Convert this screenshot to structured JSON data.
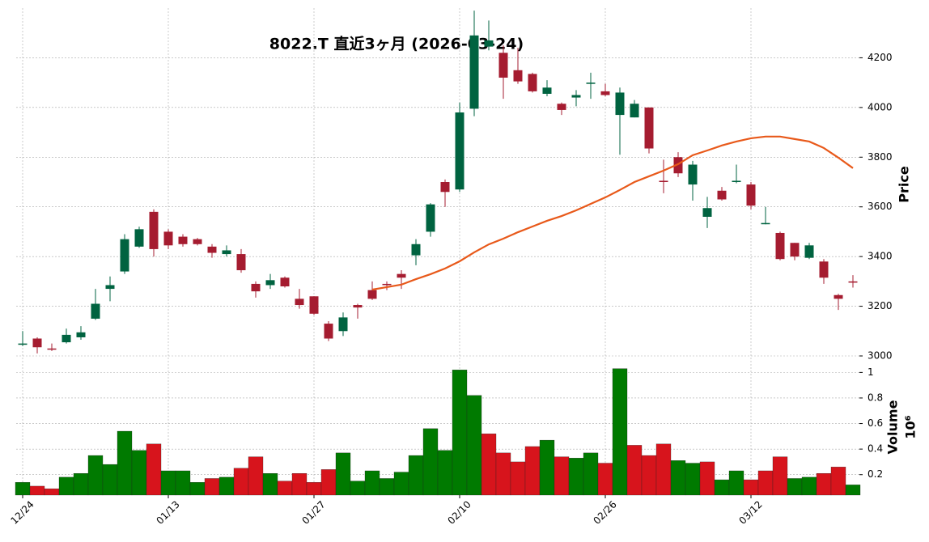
{
  "chart_data": {
    "type": "candlestick",
    "title": "8022.T  直近3ヶ月 (2026-03-24)",
    "ylabel": "Price",
    "y2label": "Volume",
    "y2_exponent_label": "10⁶",
    "categories": [
      "12/24",
      null,
      null,
      null,
      null,
      null,
      null,
      null,
      null,
      null,
      "01/13",
      null,
      null,
      null,
      null,
      null,
      null,
      null,
      null,
      null,
      "01/27",
      null,
      null,
      null,
      null,
      null,
      null,
      null,
      null,
      null,
      "02/10",
      null,
      null,
      null,
      null,
      null,
      null,
      null,
      null,
      null,
      "02/26",
      null,
      null,
      null,
      null,
      null,
      null,
      null,
      null,
      null,
      "03/12",
      null,
      null,
      null,
      null,
      null,
      null,
      null
    ],
    "open": [
      3045,
      3070,
      3030,
      3055,
      3075,
      3150,
      3270,
      3340,
      3440,
      3580,
      3500,
      3480,
      3470,
      3440,
      3410,
      3410,
      3290,
      3285,
      3315,
      3230,
      3240,
      3130,
      3100,
      3205,
      3265,
      3290,
      3330,
      3405,
      3500,
      3700,
      3670,
      3995,
      4245,
      4220,
      4150,
      4135,
      4055,
      4015,
      4040,
      4095,
      4065,
      3970,
      3960,
      4000,
      3705,
      3800,
      3690,
      3560,
      3665,
      3700,
      3690,
      3530,
      3495,
      3455,
      3395,
      3380,
      3245,
      3300
    ],
    "high": [
      3100,
      3075,
      3050,
      3110,
      3120,
      3270,
      3320,
      3490,
      3520,
      3590,
      3510,
      3490,
      3475,
      3450,
      3445,
      3430,
      3300,
      3330,
      3320,
      3270,
      3240,
      3140,
      3175,
      3210,
      3300,
      3300,
      3345,
      3470,
      3615,
      3710,
      4020,
      4390,
      4350,
      4250,
      4240,
      4140,
      4110,
      4020,
      4070,
      4140,
      4095,
      4080,
      4030,
      4000,
      3790,
      3820,
      3785,
      3640,
      3680,
      3770,
      3700,
      3600,
      3500,
      3455,
      3455,
      3390,
      3250,
      3325
    ],
    "low": [
      3040,
      3010,
      3020,
      3050,
      3065,
      3145,
      3220,
      3330,
      3435,
      3400,
      3430,
      3440,
      3445,
      3395,
      3400,
      3335,
      3235,
      3270,
      3275,
      3190,
      3165,
      3060,
      3080,
      3150,
      3225,
      3265,
      3270,
      3365,
      3480,
      3600,
      3660,
      3965,
      4230,
      4035,
      4095,
      4060,
      4045,
      3970,
      4005,
      4035,
      4045,
      3810,
      3960,
      3815,
      3655,
      3720,
      3625,
      3515,
      3625,
      3695,
      3590,
      3530,
      3385,
      3385,
      3390,
      3290,
      3185,
      3275
    ],
    "close": [
      3050,
      3035,
      3028,
      3085,
      3095,
      3210,
      3285,
      3470,
      3510,
      3430,
      3445,
      3450,
      3450,
      3415,
      3425,
      3345,
      3260,
      3305,
      3280,
      3205,
      3170,
      3070,
      3155,
      3195,
      3230,
      3285,
      3315,
      3450,
      3610,
      3660,
      3980,
      4290,
      4270,
      4120,
      4105,
      4065,
      4080,
      3990,
      4050,
      4100,
      4050,
      4060,
      4015,
      3835,
      3700,
      3735,
      3770,
      3595,
      3630,
      3705,
      3605,
      3535,
      3390,
      3400,
      3445,
      3315,
      3230,
      3295
    ],
    "up_color": "#006340",
    "down_color": "#a51c30",
    "ma": {
      "color": "#e8591a",
      "values": [
        null,
        null,
        null,
        null,
        null,
        null,
        null,
        null,
        null,
        null,
        null,
        null,
        null,
        null,
        null,
        null,
        null,
        null,
        null,
        null,
        null,
        null,
        null,
        null,
        3267,
        3277,
        3287,
        3309,
        3329,
        3352,
        3381,
        3417,
        3449,
        3472,
        3498,
        3521,
        3544,
        3563,
        3586,
        3612,
        3638,
        3668,
        3700,
        3723,
        3746,
        3772,
        3808,
        3827,
        3847,
        3863,
        3876,
        3883,
        3883,
        3873,
        3863,
        3837,
        3798,
        3756
      ]
    },
    "volume": {
      "values": [
        0.14,
        0.11,
        0.09,
        0.18,
        0.21,
        0.35,
        0.28,
        0.54,
        0.39,
        0.44,
        0.23,
        0.23,
        0.14,
        0.17,
        0.18,
        0.25,
        0.34,
        0.21,
        0.15,
        0.21,
        0.14,
        0.24,
        0.37,
        0.15,
        0.23,
        0.17,
        0.22,
        0.35,
        0.56,
        0.39,
        1.02,
        0.82,
        0.52,
        0.37,
        0.3,
        0.42,
        0.47,
        0.34,
        0.33,
        0.37,
        0.29,
        1.03,
        0.43,
        0.35,
        0.44,
        0.31,
        0.29,
        0.3,
        0.16,
        0.23,
        0.16,
        0.23,
        0.34,
        0.17,
        0.18,
        0.21,
        0.26,
        0.12
      ],
      "direction": [
        "up",
        "down",
        "down",
        "up",
        "up",
        "up",
        "up",
        "up",
        "up",
        "down",
        "up",
        "up",
        "up",
        "down",
        "up",
        "down",
        "down",
        "up",
        "down",
        "down",
        "down",
        "down",
        "up",
        "up",
        "up",
        "up",
        "up",
        "up",
        "up",
        "up",
        "up",
        "up",
        "down",
        "down",
        "down",
        "down",
        "up",
        "down",
        "up",
        "up",
        "down",
        "up",
        "down",
        "down",
        "down",
        "up",
        "up",
        "down",
        "up",
        "up",
        "down",
        "down",
        "down",
        "up",
        "up",
        "down",
        "down",
        "up"
      ],
      "up_color": "#007a00",
      "down_color": "#d7141c"
    },
    "ylim": [
      3000,
      4400
    ],
    "yticks": [
      3000,
      3200,
      3400,
      3600,
      3800,
      4000,
      4200
    ],
    "y2lim": [
      0.04,
      1.11
    ],
    "y2ticks": [
      0.2,
      0.4,
      0.6,
      0.8,
      1.0
    ],
    "grid": true
  }
}
